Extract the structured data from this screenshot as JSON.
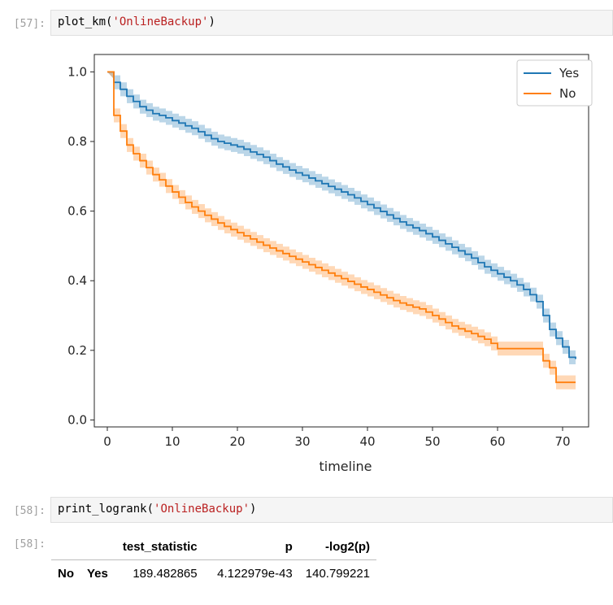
{
  "cells": [
    {
      "prompt": "[57]:",
      "code_fn": "plot_km(",
      "code_str": "'OnlineBackup'",
      "code_end": ")"
    },
    {
      "prompt": "[58]:",
      "code_fn": "print_logrank(",
      "code_str": "'OnlineBackup'",
      "code_end": ")"
    },
    {
      "prompt": "[58]:"
    }
  ],
  "chart_data": {
    "type": "line",
    "xlabel": "timeline",
    "ylabel": "",
    "xlim": [
      -2,
      74
    ],
    "ylim": [
      -0.02,
      1.05
    ],
    "x_ticks": [
      "0",
      "10",
      "20",
      "30",
      "40",
      "50",
      "60",
      "70"
    ],
    "y_ticks": [
      "0.0",
      "0.2",
      "0.4",
      "0.6",
      "0.8",
      "1.0"
    ],
    "legend_position": "top-right",
    "series": [
      {
        "name": "Yes",
        "color": "#1f77b4",
        "ci_halfwidth": 0.02,
        "x": [
          0,
          1,
          2,
          3,
          4,
          5,
          6,
          7,
          8,
          9,
          10,
          11,
          12,
          13,
          14,
          15,
          16,
          17,
          18,
          19,
          20,
          21,
          22,
          23,
          24,
          25,
          26,
          27,
          28,
          29,
          30,
          31,
          32,
          33,
          34,
          35,
          36,
          37,
          38,
          39,
          40,
          41,
          42,
          43,
          44,
          45,
          46,
          47,
          48,
          49,
          50,
          51,
          52,
          53,
          54,
          55,
          56,
          57,
          58,
          59,
          60,
          61,
          62,
          63,
          64,
          65,
          66,
          67,
          68,
          69,
          70,
          71,
          72
        ],
        "y": [
          1.0,
          0.97,
          0.95,
          0.93,
          0.915,
          0.9,
          0.89,
          0.88,
          0.875,
          0.868,
          0.86,
          0.853,
          0.845,
          0.838,
          0.828,
          0.818,
          0.808,
          0.8,
          0.795,
          0.79,
          0.785,
          0.778,
          0.77,
          0.763,
          0.755,
          0.745,
          0.735,
          0.727,
          0.718,
          0.71,
          0.703,
          0.695,
          0.687,
          0.679,
          0.671,
          0.663,
          0.655,
          0.647,
          0.638,
          0.628,
          0.619,
          0.609,
          0.599,
          0.589,
          0.579,
          0.569,
          0.56,
          0.552,
          0.544,
          0.535,
          0.526,
          0.516,
          0.506,
          0.496,
          0.486,
          0.476,
          0.465,
          0.452,
          0.44,
          0.43,
          0.42,
          0.41,
          0.4,
          0.388,
          0.375,
          0.36,
          0.34,
          0.3,
          0.26,
          0.235,
          0.21,
          0.18,
          0.175
        ]
      },
      {
        "name": "No",
        "color": "#ff7f0e",
        "ci_halfwidth": 0.02,
        "x": [
          0,
          1,
          2,
          3,
          4,
          5,
          6,
          7,
          8,
          9,
          10,
          11,
          12,
          13,
          14,
          15,
          16,
          17,
          18,
          19,
          20,
          21,
          22,
          23,
          24,
          25,
          26,
          27,
          28,
          29,
          30,
          31,
          32,
          33,
          34,
          35,
          36,
          37,
          38,
          39,
          40,
          41,
          42,
          43,
          44,
          45,
          46,
          47,
          48,
          49,
          50,
          51,
          52,
          53,
          54,
          55,
          56,
          57,
          58,
          59,
          60,
          61,
          62,
          63,
          64,
          65,
          66,
          67,
          68,
          69,
          70,
          71,
          72
        ],
        "y": [
          1.0,
          0.875,
          0.83,
          0.79,
          0.765,
          0.745,
          0.725,
          0.705,
          0.69,
          0.672,
          0.655,
          0.64,
          0.625,
          0.612,
          0.6,
          0.588,
          0.577,
          0.566,
          0.556,
          0.547,
          0.538,
          0.529,
          0.52,
          0.511,
          0.502,
          0.494,
          0.486,
          0.478,
          0.47,
          0.462,
          0.454,
          0.446,
          0.438,
          0.43,
          0.422,
          0.414,
          0.406,
          0.398,
          0.39,
          0.382,
          0.375,
          0.367,
          0.359,
          0.351,
          0.343,
          0.336,
          0.33,
          0.324,
          0.319,
          0.31,
          0.3,
          0.29,
          0.28,
          0.27,
          0.262,
          0.255,
          0.248,
          0.24,
          0.232,
          0.22,
          0.205,
          0.205,
          0.205,
          0.205,
          0.205,
          0.205,
          0.205,
          0.17,
          0.15,
          0.108,
          0.108,
          0.108,
          0.108
        ]
      }
    ]
  },
  "table": {
    "columns": [
      "test_statistic",
      "p",
      "-log2(p)"
    ],
    "row": {
      "index1": "No",
      "index2": "Yes",
      "values": [
        "189.482865",
        "4.122979e-43",
        "140.799221"
      ]
    }
  }
}
